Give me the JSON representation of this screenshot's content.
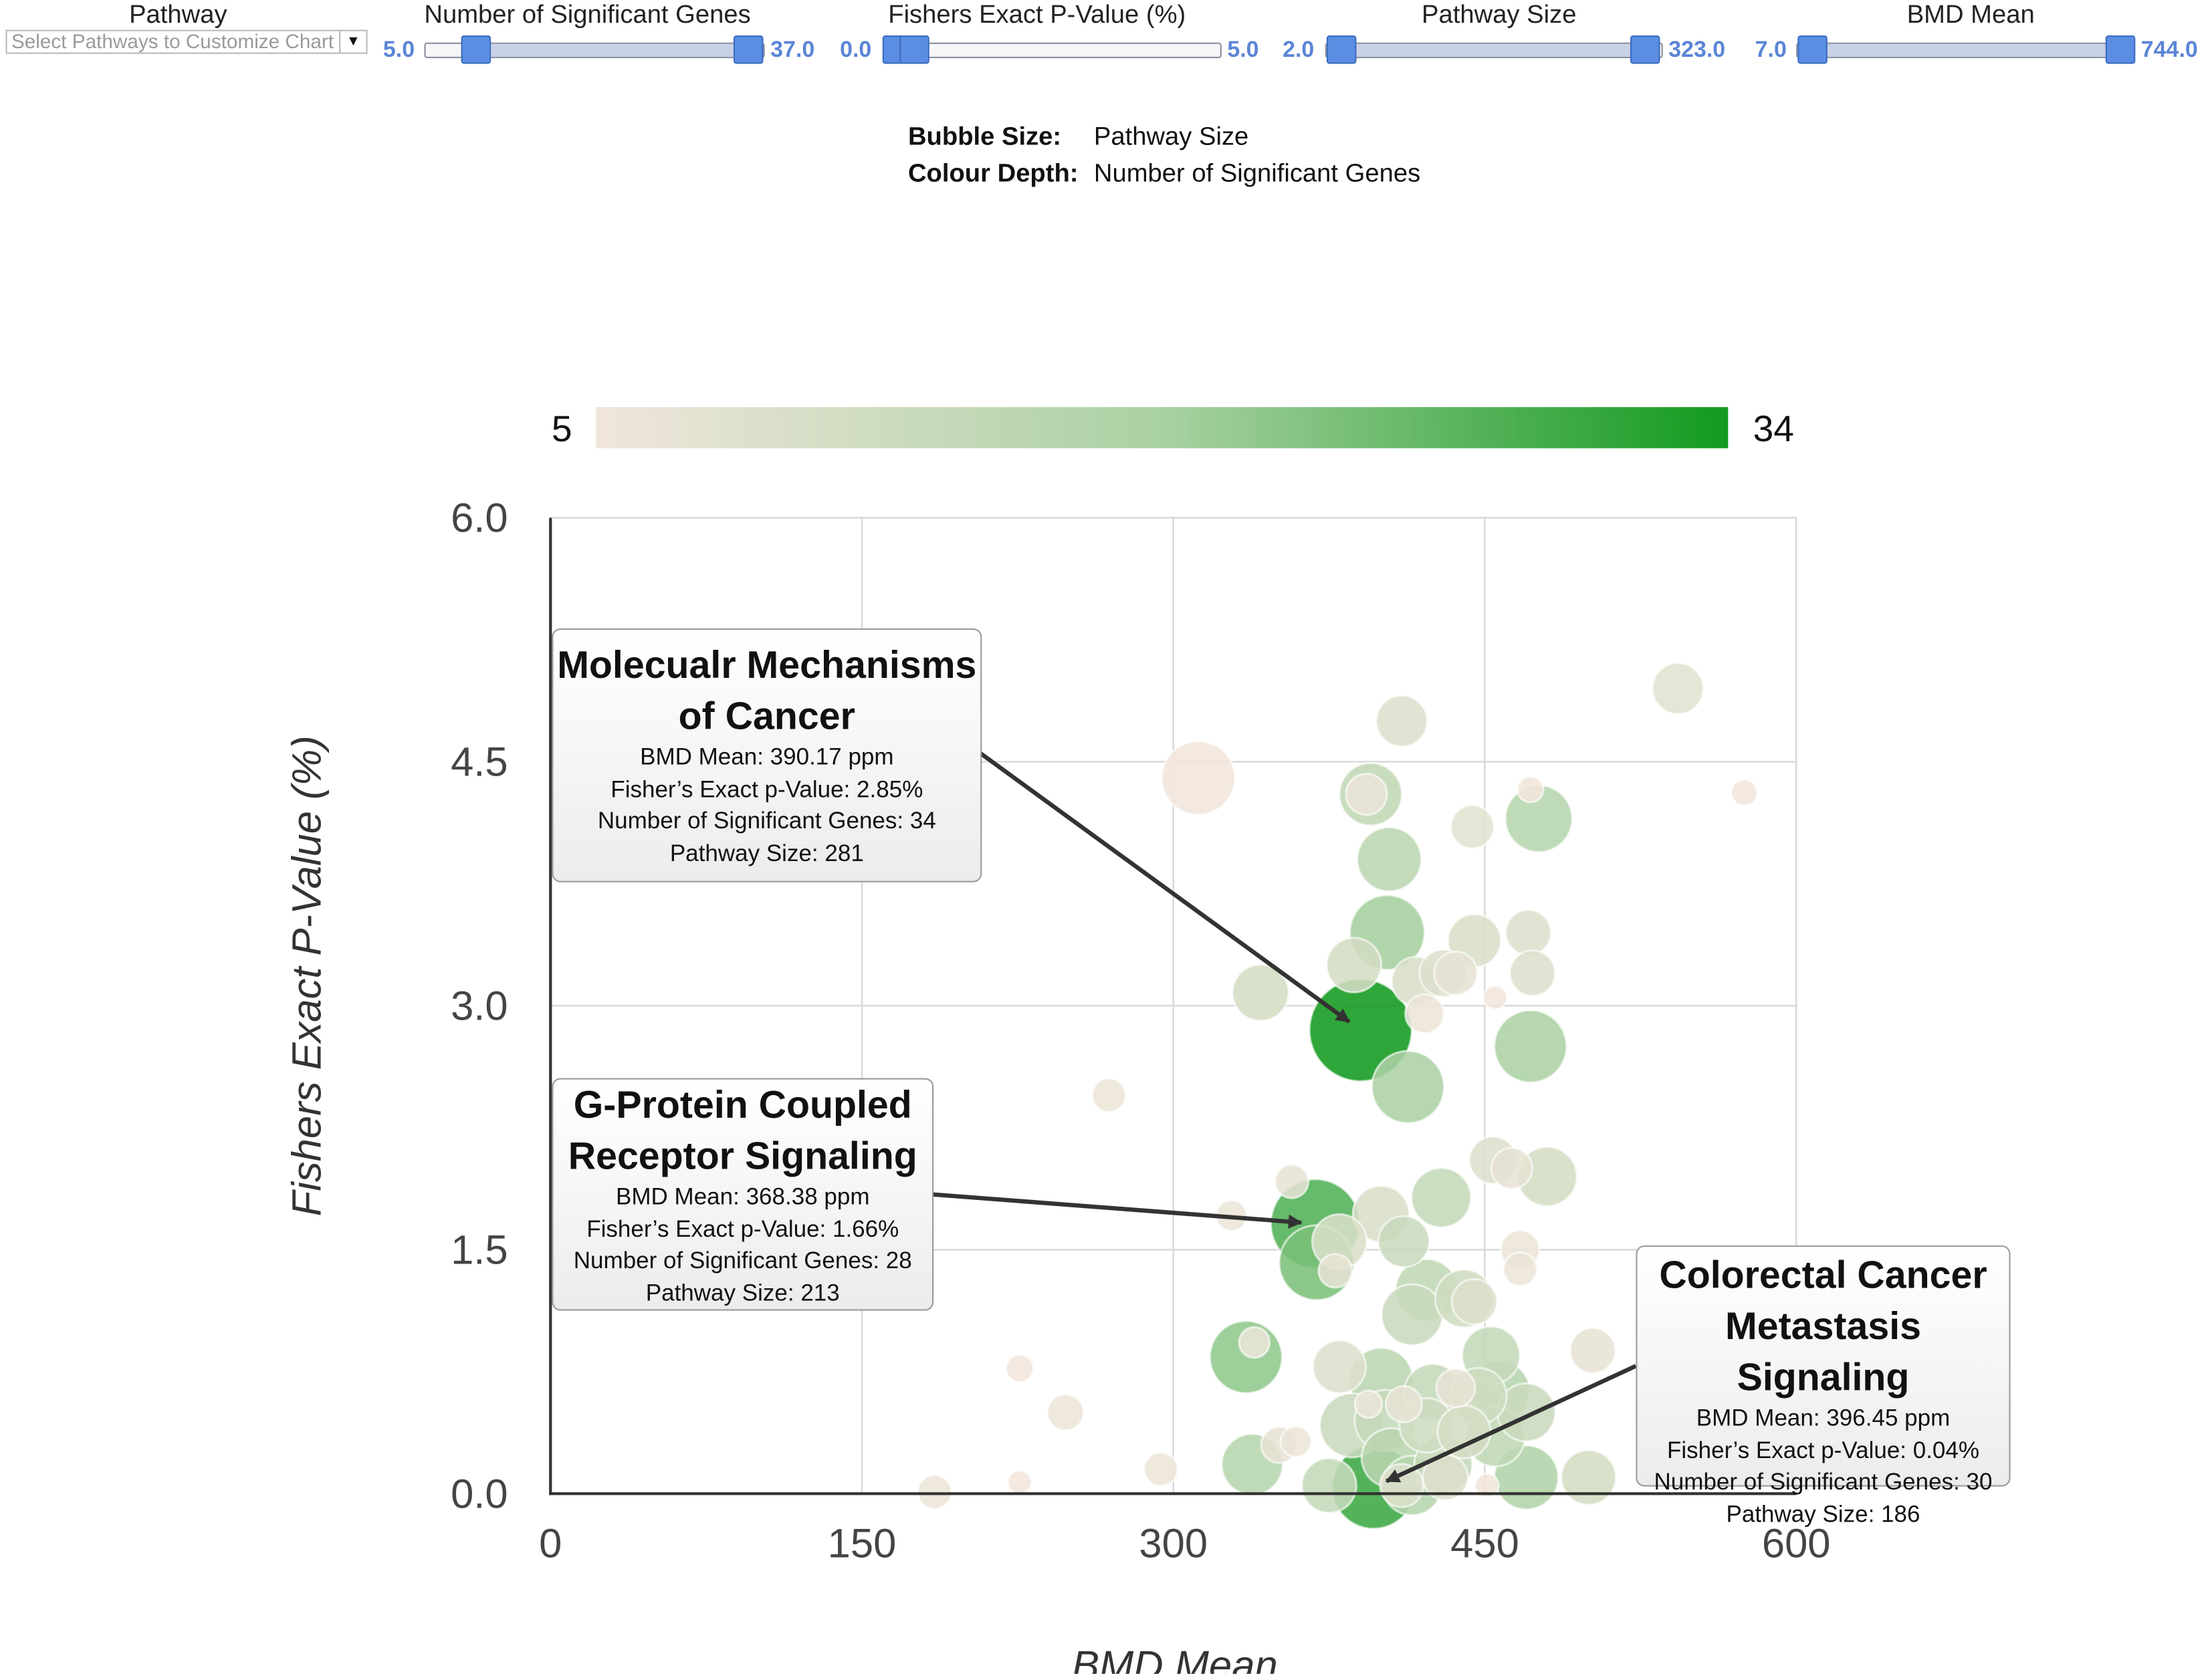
{
  "filters": {
    "pathway": {
      "label": "Pathway",
      "placeholder": "Select Pathways to Customize Chart"
    },
    "sig_genes": {
      "label": "Number of Significant Genes",
      "min": "5.0",
      "max": "37.0"
    },
    "fisher": {
      "label": "Fishers Exact P-Value (%)",
      "min": "0.0",
      "max": "5.0"
    },
    "pathway_size": {
      "label": "Pathway Size",
      "min": "2.0",
      "max": "323.0"
    },
    "bmd_mean": {
      "label": "BMD Mean",
      "min": "7.0",
      "max": "744.0"
    }
  },
  "encoding": {
    "bubble_size_key": "Bubble Size:",
    "bubble_size_value": "Pathway Size",
    "colour_depth_key": "Colour Depth:",
    "colour_depth_value": "Number of Significant Genes"
  },
  "colors": {
    "low": "#f1e6dc",
    "mid": "#aad1a3",
    "high": "#129a1f",
    "grid": "#d9d9d9",
    "axis": "#333333",
    "slider_text": "#5b85d6"
  },
  "callouts": [
    {
      "title_1": "Molecualr Mechanisms",
      "title_2": "of Cancer",
      "line_1": "BMD Mean: 390.17 ppm",
      "line_2": "Fisher’s Exact p-Value: 2.85%",
      "line_3": "Number of Significant Genes: 34",
      "line_4": "Pathway Size: 281"
    },
    {
      "title_1": "G-Protein Coupled",
      "title_2": "Receptor Signaling",
      "line_1": "BMD Mean: 368.38 ppm",
      "line_2": "Fisher’s Exact p-Value: 1.66%",
      "line_3": "Number of Significant Genes: 28",
      "line_4": "Pathway Size: 213"
    },
    {
      "title_1": "Colorectal Cancer",
      "title_2": "Metastasis Signaling",
      "line_1": "BMD Mean: 396.45 ppm",
      "line_2": "Fisher’s Exact p-Value: 0.04%",
      "line_3": "Number of Significant Genes: 30",
      "line_4": "Pathway Size: 186"
    }
  ],
  "chart_data": {
    "type": "scatter",
    "subtype": "bubble",
    "xlabel": "BMD Mean",
    "ylabel": "Fishers Exact P-Value (%)",
    "xlim": [
      0,
      600
    ],
    "ylim": [
      0,
      6.0
    ],
    "xticks": [
      0,
      150,
      300,
      450,
      600
    ],
    "yticks": [
      0.0,
      1.5,
      3.0,
      4.5,
      6.0
    ],
    "xtick_labels": [
      "0",
      "150",
      "300",
      "450",
      "600"
    ],
    "ytick_labels": [
      "0.0",
      "1.5",
      "3.0",
      "4.5",
      "6.0"
    ],
    "grid": true,
    "colorbar": {
      "min": 5,
      "max": 34,
      "min_label": "5",
      "max_label": "34",
      "placement": "top"
    },
    "size_encoding": "Pathway Size",
    "color_encoding": "Number of Significant Genes",
    "points": [
      {
        "x": 390.17,
        "y": 2.85,
        "genes": 34,
        "size": 281
      },
      {
        "x": 368.38,
        "y": 1.66,
        "genes": 28,
        "size": 213
      },
      {
        "x": 396.45,
        "y": 0.04,
        "genes": 30,
        "size": 186
      },
      {
        "x": 312,
        "y": 4.4,
        "genes": 5,
        "size": 145
      },
      {
        "x": 410,
        "y": 4.75,
        "genes": 9,
        "size": 70
      },
      {
        "x": 543,
        "y": 4.95,
        "genes": 8,
        "size": 70
      },
      {
        "x": 395,
        "y": 4.3,
        "genes": 15,
        "size": 105
      },
      {
        "x": 393,
        "y": 4.3,
        "genes": 6,
        "size": 45
      },
      {
        "x": 444,
        "y": 4.1,
        "genes": 8,
        "size": 50
      },
      {
        "x": 476,
        "y": 4.15,
        "genes": 17,
        "size": 120
      },
      {
        "x": 472,
        "y": 4.33,
        "genes": 5,
        "size": 18
      },
      {
        "x": 575,
        "y": 4.31,
        "genes": 5,
        "size": 18
      },
      {
        "x": 404,
        "y": 3.9,
        "genes": 16,
        "size": 110
      },
      {
        "x": 403,
        "y": 3.45,
        "genes": 20,
        "size": 150
      },
      {
        "x": 445,
        "y": 3.4,
        "genes": 10,
        "size": 75
      },
      {
        "x": 471,
        "y": 3.45,
        "genes": 9,
        "size": 55
      },
      {
        "x": 387,
        "y": 3.25,
        "genes": 11,
        "size": 80
      },
      {
        "x": 417,
        "y": 3.15,
        "genes": 10,
        "size": 65
      },
      {
        "x": 430,
        "y": 3.2,
        "genes": 9,
        "size": 60
      },
      {
        "x": 436,
        "y": 3.2,
        "genes": 7,
        "size": 50
      },
      {
        "x": 473,
        "y": 3.2,
        "genes": 9,
        "size": 55
      },
      {
        "x": 342,
        "y": 3.08,
        "genes": 11,
        "size": 85
      },
      {
        "x": 421,
        "y": 2.95,
        "genes": 6,
        "size": 40
      },
      {
        "x": 455,
        "y": 3.05,
        "genes": 5,
        "size": 15
      },
      {
        "x": 472,
        "y": 2.75,
        "genes": 19,
        "size": 140
      },
      {
        "x": 413,
        "y": 2.5,
        "genes": 19,
        "size": 140
      },
      {
        "x": 269,
        "y": 2.45,
        "genes": 6,
        "size": 30
      },
      {
        "x": 357,
        "y": 1.92,
        "genes": 7,
        "size": 30
      },
      {
        "x": 454,
        "y": 2.05,
        "genes": 9,
        "size": 60
      },
      {
        "x": 463,
        "y": 2.0,
        "genes": 7,
        "size": 45
      },
      {
        "x": 480,
        "y": 1.95,
        "genes": 11,
        "size": 95
      },
      {
        "x": 429,
        "y": 1.82,
        "genes": 14,
        "size": 95
      },
      {
        "x": 400,
        "y": 1.72,
        "genes": 10,
        "size": 85
      },
      {
        "x": 328,
        "y": 1.71,
        "genes": 6,
        "size": 25
      },
      {
        "x": 380,
        "y": 1.55,
        "genes": 10,
        "size": 80
      },
      {
        "x": 411,
        "y": 1.55,
        "genes": 13,
        "size": 70
      },
      {
        "x": 369,
        "y": 1.42,
        "genes": 24,
        "size": 150
      },
      {
        "x": 378,
        "y": 1.37,
        "genes": 7,
        "size": 30
      },
      {
        "x": 467,
        "y": 1.5,
        "genes": 6,
        "size": 40
      },
      {
        "x": 467,
        "y": 1.38,
        "genes": 6,
        "size": 30
      },
      {
        "x": 422,
        "y": 1.25,
        "genes": 15,
        "size": 105
      },
      {
        "x": 440,
        "y": 1.2,
        "genes": 12,
        "size": 90
      },
      {
        "x": 445,
        "y": 1.18,
        "genes": 9,
        "size": 55
      },
      {
        "x": 415,
        "y": 1.1,
        "genes": 13,
        "size": 100
      },
      {
        "x": 335,
        "y": 0.84,
        "genes": 22,
        "size": 140
      },
      {
        "x": 339,
        "y": 0.93,
        "genes": 6,
        "size": 25
      },
      {
        "x": 453,
        "y": 0.85,
        "genes": 14,
        "size": 90
      },
      {
        "x": 502,
        "y": 0.88,
        "genes": 7,
        "size": 55
      },
      {
        "x": 226,
        "y": 0.77,
        "genes": 5,
        "size": 20
      },
      {
        "x": 380,
        "y": 0.78,
        "genes": 9,
        "size": 75
      },
      {
        "x": 400,
        "y": 0.7,
        "genes": 16,
        "size": 110
      },
      {
        "x": 425,
        "y": 0.62,
        "genes": 14,
        "size": 90
      },
      {
        "x": 447,
        "y": 0.6,
        "genes": 12,
        "size": 85
      },
      {
        "x": 457,
        "y": 0.63,
        "genes": 17,
        "size": 100
      },
      {
        "x": 436,
        "y": 0.65,
        "genes": 7,
        "size": 40
      },
      {
        "x": 470,
        "y": 0.5,
        "genes": 13,
        "size": 90
      },
      {
        "x": 386,
        "y": 0.42,
        "genes": 13,
        "size": 110
      },
      {
        "x": 402,
        "y": 0.45,
        "genes": 14,
        "size": 100
      },
      {
        "x": 422,
        "y": 0.42,
        "genes": 12,
        "size": 80
      },
      {
        "x": 440,
        "y": 0.38,
        "genes": 11,
        "size": 75
      },
      {
        "x": 455,
        "y": 0.35,
        "genes": 15,
        "size": 95
      },
      {
        "x": 394,
        "y": 0.55,
        "genes": 6,
        "size": 20
      },
      {
        "x": 411,
        "y": 0.55,
        "genes": 7,
        "size": 35
      },
      {
        "x": 248,
        "y": 0.5,
        "genes": 6,
        "size": 35
      },
      {
        "x": 351,
        "y": 0.3,
        "genes": 7,
        "size": 35
      },
      {
        "x": 359,
        "y": 0.32,
        "genes": 6,
        "size": 25
      },
      {
        "x": 338,
        "y": 0.18,
        "genes": 17,
        "size": 100
      },
      {
        "x": 405,
        "y": 0.22,
        "genes": 16,
        "size": 95
      },
      {
        "x": 430,
        "y": 0.18,
        "genes": 14,
        "size": 90
      },
      {
        "x": 470,
        "y": 0.1,
        "genes": 18,
        "size": 110
      },
      {
        "x": 500,
        "y": 0.1,
        "genes": 11,
        "size": 80
      },
      {
        "x": 294,
        "y": 0.15,
        "genes": 6,
        "size": 30
      },
      {
        "x": 375,
        "y": 0.05,
        "genes": 14,
        "size": 80
      },
      {
        "x": 415,
        "y": 0.05,
        "genes": 17,
        "size": 95
      },
      {
        "x": 410,
        "y": 0.05,
        "genes": 9,
        "size": 50
      },
      {
        "x": 431,
        "y": 0.1,
        "genes": 9,
        "size": 55
      },
      {
        "x": 185,
        "y": 0.01,
        "genes": 6,
        "size": 30
      },
      {
        "x": 226,
        "y": 0.07,
        "genes": 5,
        "size": 15
      },
      {
        "x": 451,
        "y": 0.05,
        "genes": 5,
        "size": 15
      }
    ]
  }
}
